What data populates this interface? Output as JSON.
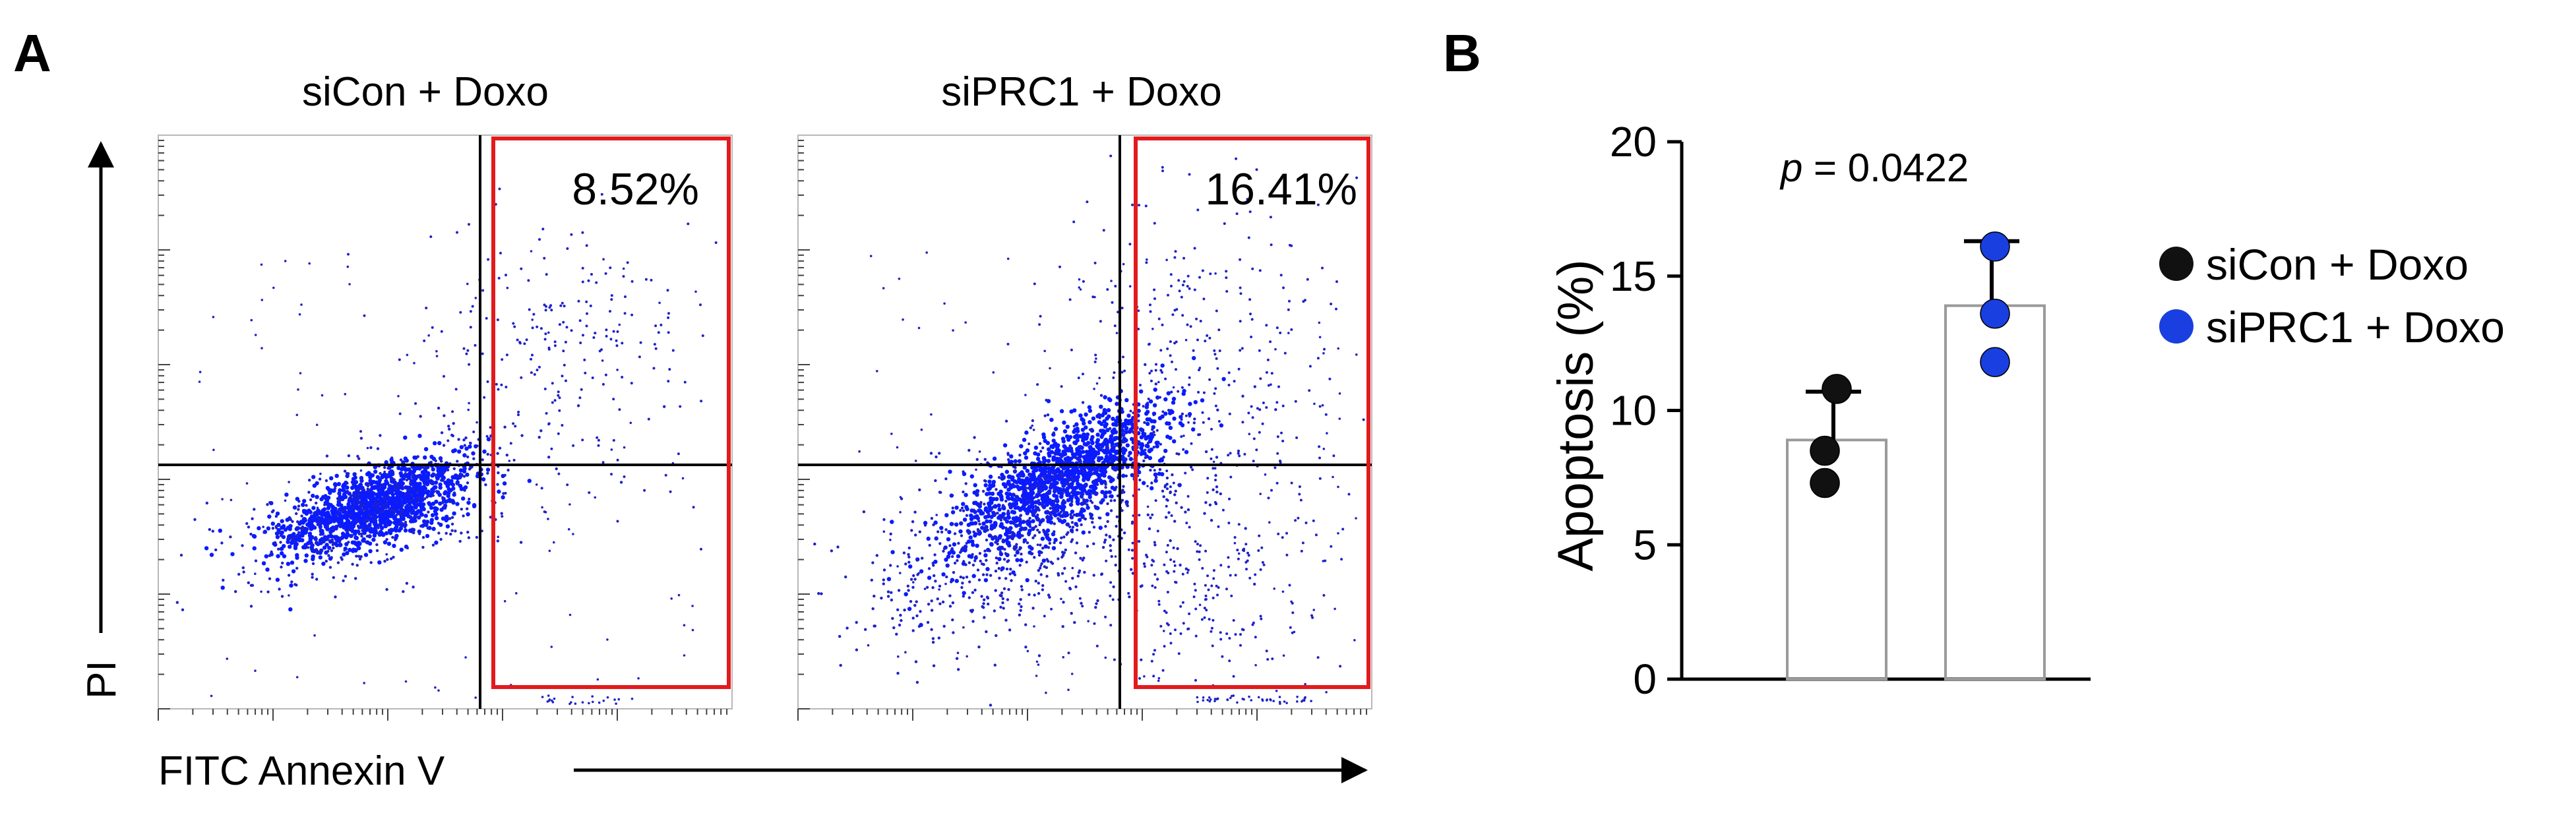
{
  "panels": {
    "a": {
      "letter": "A"
    },
    "b": {
      "letter": "B"
    }
  },
  "colors": {
    "siCon": "#111111",
    "siPRC1": "#1a3fe0",
    "scatter_dots": "#1f22c8",
    "scatter_core": "#0a1bff",
    "gate": "#e31a1c",
    "axis": "#000000",
    "bar_outline": "#9a9a9a"
  },
  "chart_data": [
    {
      "type": "scatter",
      "panel": "A",
      "title": "siCon + Doxo",
      "xlabel": "FITC Annexin V",
      "ylabel": "PI",
      "scale": "log",
      "gate_label": "8.52%",
      "gate_percent": 8.52
    },
    {
      "type": "scatter",
      "panel": "A",
      "title": "siPRC1 + Doxo",
      "xlabel": "FITC Annexin V",
      "ylabel": "PI",
      "scale": "log",
      "gate_label": "16.41%",
      "gate_percent": 16.41
    },
    {
      "type": "bar",
      "panel": "B",
      "title": "",
      "xlabel": "",
      "ylabel": "Apoptosis (%)",
      "ylim": [
        0,
        20
      ],
      "yticks": [
        "0",
        "5",
        "10",
        "15",
        "20"
      ],
      "annotation_p": "p",
      "annotation_value": " = 0.0422",
      "series": [
        {
          "name": "siCon + Doxo",
          "mean": 8.9,
          "error_high": 10.7,
          "points": [
            10.8,
            8.5,
            7.3
          ]
        },
        {
          "name": "siPRC1 + Doxo",
          "mean": 13.9,
          "error_high": 16.3,
          "points": [
            16.1,
            13.6,
            11.8
          ]
        }
      ],
      "legend": [
        "siCon + Doxo",
        "siPRC1 + Doxo"
      ]
    }
  ]
}
